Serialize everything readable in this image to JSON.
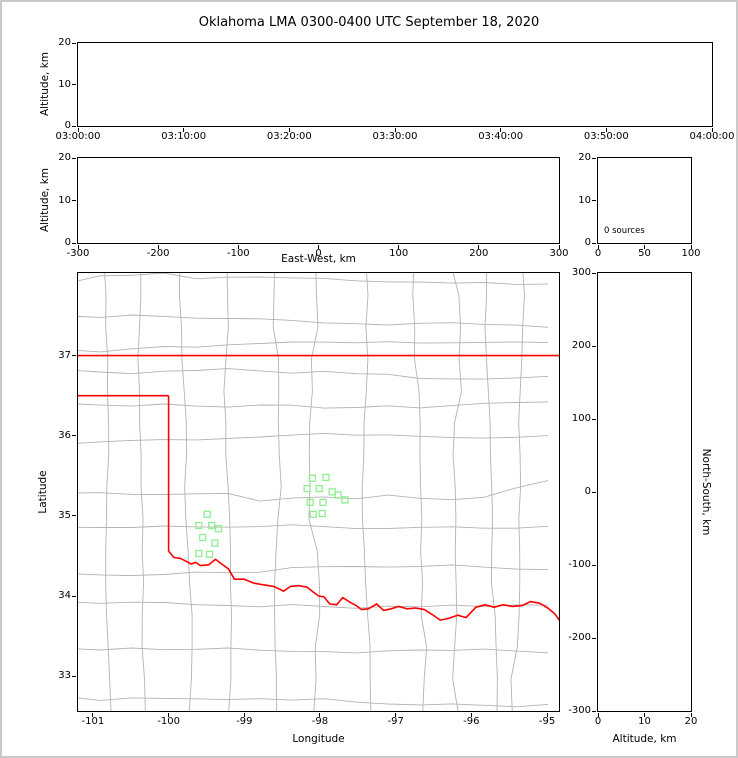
{
  "title": "Oklahoma LMA 0300-0400 UTC September 18, 2020",
  "colors": {
    "state_border": "#ff0000",
    "county": "#b3b3b3",
    "station": "#90ee90",
    "axis": "#000000",
    "frame": "#c9c9c9"
  },
  "chart_data": [
    {
      "id": "time_height",
      "type": "scatter",
      "description": "Altitude vs time panel, empty (no lightning sources)",
      "xlim": [
        0,
        3600
      ],
      "xticks": [
        0,
        600,
        1200,
        1800,
        2400,
        3000,
        3600
      ],
      "xtick_labels": [
        "03:00:00",
        "03:10:00",
        "03:20:00",
        "03:30:00",
        "03:40:00",
        "03:50:00",
        "04:00:00"
      ],
      "ylim": [
        0,
        20
      ],
      "yticks": [
        0,
        10,
        20
      ],
      "ytick_labels": [
        "0",
        "10",
        "20"
      ],
      "xlabel": "",
      "ylabel": "Altitude, km",
      "points": []
    },
    {
      "id": "ew_height",
      "type": "scatter",
      "description": "Altitude vs east-west distance panel, empty",
      "xlim": [
        -300,
        300
      ],
      "xticks": [
        -300,
        -200,
        -100,
        0,
        100,
        200,
        300
      ],
      "xtick_labels": [
        "-300",
        "-200",
        "-100",
        "0",
        "100",
        "200",
        "300"
      ],
      "ylim": [
        0,
        20
      ],
      "yticks": [
        0,
        10,
        20
      ],
      "ytick_labels": [
        "0",
        "10",
        "20"
      ],
      "xlabel": "East-West, km",
      "ylabel": "Altitude, km",
      "points": []
    },
    {
      "id": "height_histogram",
      "type": "line",
      "description": "Source-count vs altitude histogram panel, empty",
      "annotation": "0 sources",
      "xlim": [
        0,
        100
      ],
      "xticks": [
        0,
        50,
        100
      ],
      "xtick_labels": [
        "0",
        "50",
        "100"
      ],
      "ylim": [
        0,
        20
      ],
      "yticks": [
        0,
        10,
        20
      ],
      "ytick_labels": [
        "0",
        "10",
        "20"
      ],
      "xlabel": "",
      "ylabel": "",
      "points": []
    },
    {
      "id": "plan_map",
      "type": "scatter",
      "description": "Plan-view map of Oklahoma with county lines, state border and LMA station markers",
      "xlim": [
        -101.197,
        -94.842
      ],
      "xticks": [
        -101,
        -100,
        -99,
        -98,
        -97,
        -96,
        -95
      ],
      "xtick_labels": [
        "-101",
        "-100",
        "-99",
        "-98",
        "-97",
        "-96",
        "-95"
      ],
      "ylim": [
        32.565,
        38.031
      ],
      "yticks": [
        33,
        34,
        35,
        36,
        37
      ],
      "ytick_labels": [
        "33",
        "34",
        "35",
        "36",
        "37"
      ],
      "xlabel": "Longitude",
      "ylabel": "Latitude",
      "stations": [
        [
          -98.1,
          35.47
        ],
        [
          -97.92,
          35.48
        ],
        [
          -98.17,
          35.34
        ],
        [
          -98.01,
          35.34
        ],
        [
          -97.84,
          35.3
        ],
        [
          -97.76,
          35.26
        ],
        [
          -98.13,
          35.17
        ],
        [
          -97.96,
          35.17
        ],
        [
          -97.67,
          35.2
        ],
        [
          -98.09,
          35.02
        ],
        [
          -97.97,
          35.03
        ],
        [
          -99.49,
          35.02
        ],
        [
          -99.6,
          34.88
        ],
        [
          -99.43,
          34.88
        ],
        [
          -99.34,
          34.84
        ],
        [
          -99.55,
          34.73
        ],
        [
          -99.39,
          34.66
        ],
        [
          -99.6,
          34.53
        ],
        [
          -99.46,
          34.52
        ]
      ],
      "state_border": [
        [
          [
            -101.197,
            37.0
          ],
          [
            -94.842,
            37.0
          ]
        ],
        [
          [
            -101.197,
            36.5
          ],
          [
            -100.0,
            36.5
          ]
        ],
        [
          [
            -100.0,
            36.5
          ],
          [
            -100.0,
            34.56
          ]
        ],
        [
          [
            -100.0,
            34.56
          ],
          [
            -99.93,
            34.48
          ],
          [
            -99.85,
            34.47
          ],
          [
            -99.78,
            34.44
          ],
          [
            -99.7,
            34.4
          ],
          [
            -99.64,
            34.42
          ],
          [
            -99.58,
            34.38
          ],
          [
            -99.47,
            34.39
          ],
          [
            -99.38,
            34.46
          ],
          [
            -99.3,
            34.4
          ],
          [
            -99.21,
            34.34
          ],
          [
            -99.13,
            34.21
          ],
          [
            -99.0,
            34.21
          ],
          [
            -98.87,
            34.16
          ],
          [
            -98.75,
            34.14
          ],
          [
            -98.61,
            34.12
          ],
          [
            -98.48,
            34.06
          ],
          [
            -98.39,
            34.12
          ],
          [
            -98.28,
            34.13
          ],
          [
            -98.17,
            34.11
          ],
          [
            -98.09,
            34.05
          ],
          [
            -98.02,
            34.0
          ],
          [
            -97.95,
            33.99
          ],
          [
            -97.87,
            33.9
          ],
          [
            -97.78,
            33.89
          ],
          [
            -97.7,
            33.98
          ],
          [
            -97.6,
            33.92
          ],
          [
            -97.52,
            33.88
          ],
          [
            -97.45,
            33.83
          ],
          [
            -97.36,
            33.84
          ],
          [
            -97.25,
            33.9
          ],
          [
            -97.16,
            33.82
          ],
          [
            -97.06,
            33.84
          ],
          [
            -96.96,
            33.87
          ],
          [
            -96.85,
            33.84
          ],
          [
            -96.74,
            33.85
          ],
          [
            -96.62,
            33.83
          ],
          [
            -96.52,
            33.77
          ],
          [
            -96.41,
            33.7
          ],
          [
            -96.3,
            33.72
          ],
          [
            -96.18,
            33.76
          ],
          [
            -96.07,
            33.73
          ],
          [
            -95.94,
            33.86
          ],
          [
            -95.82,
            33.89
          ],
          [
            -95.7,
            33.86
          ],
          [
            -95.58,
            33.89
          ],
          [
            -95.46,
            33.87
          ],
          [
            -95.33,
            33.88
          ],
          [
            -95.22,
            33.93
          ],
          [
            -95.1,
            33.91
          ],
          [
            -94.99,
            33.85
          ],
          [
            -94.9,
            33.78
          ],
          [
            -94.84,
            33.7
          ]
        ]
      ]
    },
    {
      "id": "ns_height",
      "type": "scatter",
      "description": "North-south distance vs altitude panel, empty",
      "xlim": [
        0,
        20
      ],
      "xticks": [
        0,
        10,
        20
      ],
      "xtick_labels": [
        "0",
        "10",
        "20"
      ],
      "ylim": [
        -300,
        300
      ],
      "yticks": [
        -300,
        -200,
        -100,
        0,
        100,
        200,
        300
      ],
      "ytick_labels": [
        "-300",
        "-200",
        "-100",
        "0",
        "100",
        "200",
        "300"
      ],
      "xlabel": "Altitude, km",
      "ylabel": "North-South, km",
      "points": []
    }
  ]
}
